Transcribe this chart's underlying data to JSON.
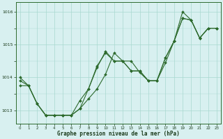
{
  "line1": {
    "x": [
      0,
      1,
      2,
      3,
      4,
      5,
      6,
      7,
      8,
      9,
      10,
      11,
      12,
      13,
      14,
      15,
      16,
      17,
      18,
      19,
      20,
      21,
      22,
      23
    ],
    "y": [
      1014.0,
      1013.75,
      1013.2,
      1012.85,
      1012.85,
      1012.85,
      1012.85,
      1013.05,
      1013.35,
      1013.65,
      1014.1,
      1014.75,
      1014.5,
      1014.5,
      1014.15,
      1013.9,
      1013.9,
      1014.45,
      1015.1,
      1015.8,
      1015.75,
      1015.2,
      1015.5,
      1015.5
    ]
  },
  "line2": {
    "x": [
      0,
      1,
      2,
      3,
      4,
      5,
      6,
      7,
      8,
      9,
      10,
      11,
      12,
      13,
      14,
      15,
      16,
      17,
      18,
      19,
      20,
      21,
      22,
      23
    ],
    "y": [
      1013.75,
      1013.75,
      1013.2,
      1012.85,
      1012.85,
      1012.85,
      1012.85,
      1013.3,
      1013.65,
      1014.35,
      1014.75,
      1014.5,
      1014.5,
      1014.2,
      1014.2,
      1013.9,
      1013.9,
      1014.6,
      1015.1,
      1016.0,
      1015.75,
      1015.2,
      1015.5,
      1015.5
    ]
  },
  "line3": {
    "x": [
      0,
      1,
      2,
      3,
      4,
      5,
      6,
      7,
      8,
      9,
      10,
      11,
      12,
      13,
      14,
      15,
      16,
      17,
      18,
      19,
      20,
      21,
      22,
      23
    ],
    "y": [
      1013.9,
      1013.75,
      1013.2,
      1012.85,
      1012.85,
      1012.85,
      1012.85,
      1013.05,
      1013.65,
      1014.3,
      1014.8,
      1014.5,
      1014.5,
      1014.2,
      1014.2,
      1013.9,
      1013.9,
      1014.6,
      1015.1,
      1015.8,
      1015.75,
      1015.2,
      1015.5,
      1015.5
    ]
  },
  "line_color": "#2d6a2d",
  "marker": "D",
  "marker_size": 2,
  "bg_color": "#d8f0f0",
  "grid_color": "#a8d8d0",
  "xlabel": "Graphe pression niveau de la mer (hPa)",
  "ylim": [
    1012.6,
    1016.3
  ],
  "xlim": [
    -0.5,
    23.5
  ],
  "yticks": [
    1013,
    1014,
    1015,
    1016
  ],
  "xticks": [
    0,
    1,
    2,
    3,
    4,
    5,
    6,
    7,
    8,
    9,
    10,
    11,
    12,
    13,
    14,
    15,
    16,
    17,
    18,
    19,
    20,
    21,
    22,
    23
  ]
}
